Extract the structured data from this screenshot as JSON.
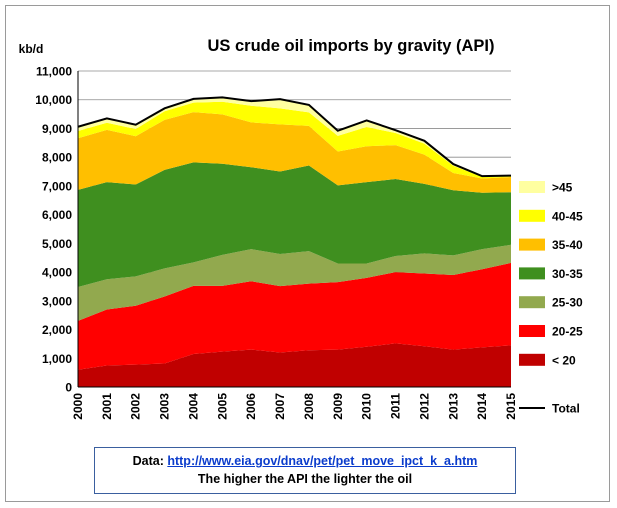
{
  "chart_data": {
    "type": "area",
    "title": "US crude oil imports by gravity (API)",
    "ylabel": "kb/d",
    "xlabel": "",
    "ylim": [
      0,
      11000
    ],
    "yticks": [
      0,
      1000,
      2000,
      3000,
      4000,
      5000,
      6000,
      7000,
      8000,
      9000,
      10000,
      11000
    ],
    "ytick_labels": [
      "0",
      "1,000",
      "2,000",
      "3,000",
      "4,000",
      "5,000",
      "6,000",
      "7,000",
      "8,000",
      "9,000",
      "10,000",
      "11,000"
    ],
    "categories": [
      "2000",
      "2001",
      "2002",
      "2003",
      "2004",
      "2005",
      "2006",
      "2007",
      "2008",
      "2009",
      "2010",
      "2011",
      "2012",
      "2013",
      "2014",
      "2015"
    ],
    "stacked": true,
    "grid": "horizontal",
    "legend_position": "right",
    "series": [
      {
        "name": "< 20",
        "color": "#c00000",
        "values": [
          600,
          750,
          780,
          820,
          1150,
          1230,
          1300,
          1200,
          1280,
          1300,
          1400,
          1520,
          1420,
          1300,
          1380,
          1450
        ]
      },
      {
        "name": "20-25",
        "color": "#ff0000",
        "values": [
          1700,
          1950,
          2050,
          2330,
          2370,
          2290,
          2380,
          2310,
          2320,
          2350,
          2400,
          2480,
          2530,
          2600,
          2720,
          2870
        ]
      },
      {
        "name": "25-30",
        "color": "#92a94e",
        "values": [
          1180,
          1050,
          1020,
          980,
          820,
          1080,
          1120,
          1120,
          1130,
          650,
          500,
          560,
          700,
          680,
          700,
          630
        ]
      },
      {
        "name": "30-35",
        "color": "#3f8f1f",
        "values": [
          3380,
          3380,
          3200,
          3430,
          3480,
          3170,
          2850,
          2870,
          2980,
          2720,
          2830,
          2680,
          2420,
          2270,
          1960,
          1830
        ]
      },
      {
        "name": "35-40",
        "color": "#ffbf00",
        "values": [
          1800,
          1820,
          1680,
          1740,
          1750,
          1720,
          1560,
          1640,
          1380,
          1180,
          1250,
          1180,
          1020,
          600,
          500,
          530
        ]
      },
      {
        "name": "40-45",
        "color": "#ffff00",
        "values": [
          250,
          250,
          250,
          300,
          330,
          440,
          580,
          560,
          470,
          540,
          670,
          420,
          380,
          250,
          60,
          40
        ]
      },
      {
        "name": ">45",
        "color": "#ffffa0",
        "values": [
          150,
          150,
          150,
          100,
          130,
          150,
          160,
          320,
          260,
          180,
          230,
          100,
          100,
          60,
          20,
          10
        ]
      }
    ],
    "total": {
      "name": "Total",
      "color": "#000000",
      "values": [
        9060,
        9350,
        9130,
        9700,
        10030,
        10080,
        9950,
        10020,
        9820,
        8920,
        9280,
        8940,
        8570,
        7760,
        7340,
        7360
      ]
    }
  },
  "footnote": {
    "data_label": "Data: ",
    "url": "http://www.eia.gov/dnav/pet/pet_move_ipct_k_a.htm",
    "note": "The higher the API the lighter the oil"
  }
}
